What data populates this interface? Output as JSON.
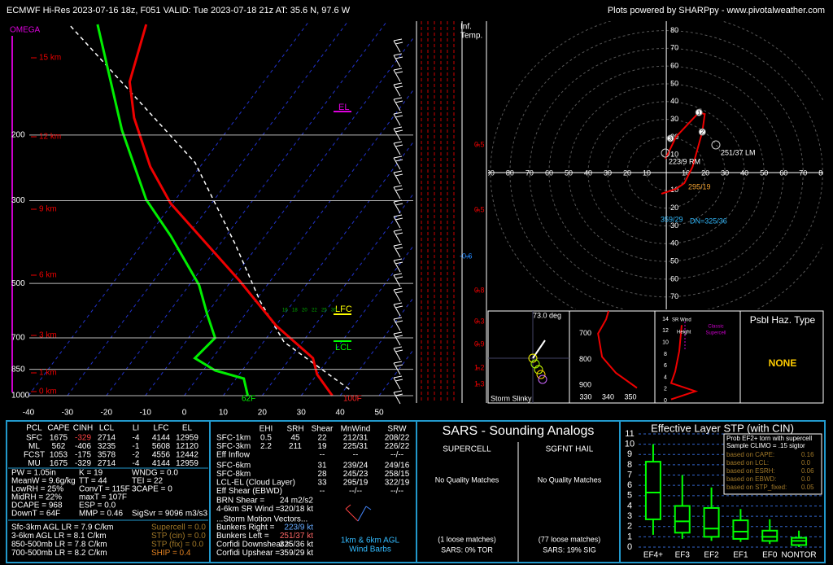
{
  "header": {
    "title": "ECMWF Hi-Res 2023-07-16 18z, F051  VALID: Tue 2023-07-18 21z  AT: 35.6 N, 97.6 W",
    "credit": "Plots powered by SHARPpy - www.pivotalweather.com"
  },
  "skewt": {
    "omega_label": "OMEGA",
    "height_labels": [
      "15 km",
      "12 km",
      "9 km",
      "6 km",
      "3 km",
      "1 km",
      "0 km"
    ],
    "plim": [
      1000,
      100
    ],
    "tlim": [
      -40,
      50
    ],
    "pressure_ticks": [
      200,
      300,
      500,
      700,
      850,
      1000
    ],
    "temp_ticks": [
      -40,
      -30,
      -20,
      -10,
      0,
      10,
      20,
      30,
      40,
      50
    ],
    "temperature": {
      "pressure": [
        1000,
        877,
        793,
        649,
        492,
        305,
        243,
        180,
        144,
        101
      ],
      "values": [
        38,
        30,
        25.8,
        10.1,
        -7.9,
        -40.5,
        -52.8,
        -66.3,
        -74.4,
        -81.2
      ]
    },
    "dewpoint": {
      "pressure": [
        1000,
        900,
        856,
        793,
        700,
        602,
        505,
        373,
        298,
        194,
        101
      ],
      "values": [
        16.3,
        12,
        3.1,
        -4.5,
        -3.2,
        -10,
        -17.5,
        -34.2,
        -47.5,
        -67.1,
        -93.7
      ]
    },
    "parcel": {
      "pressure": [
        961,
        718,
        558,
        393,
        237,
        101
      ],
      "values": [
        41.1,
        15.3,
        1.3,
        -16,
        -42.1,
        -101
      ]
    },
    "levels": {
      "el": "EL",
      "lfc": "LFC",
      "lcl": "LCL"
    },
    "surface": {
      "dewpoint": "62F",
      "temperature": "100F"
    },
    "mixing_ratio_labels": [
      "16",
      "18",
      "20",
      "22",
      "25",
      "30"
    ]
  },
  "inferred_temp": {
    "title": [
      "Inf.",
      "Temp."
    ],
    "values": [
      0.5,
      0.5,
      -0.6,
      0.8,
      0.3,
      0.9,
      1.2,
      1.3
    ]
  },
  "hodograph": {
    "xlim": [
      -91.2,
      80.3
    ],
    "ylim": [
      -77,
      85.3
    ],
    "ring_ticks": [
      10,
      20,
      30,
      40,
      50,
      60,
      70,
      80,
      90
    ],
    "trace": {
      "u": [
        -2.5,
        5.0,
        9.2,
        13.4,
        18.4,
        19.7,
        16.7,
        5.0,
        -0.4
      ],
      "v": [
        -11.9,
        -9.2,
        -6.0,
        3.2,
        22.9,
        33.0,
        33.9,
        20.2,
        7.8
      ]
    },
    "markers": {
      "labels": [
        "1",
        "2",
        "3"
      ],
      "u": [
        16.7,
        18.4,
        2.1
      ],
      "v": [
        33.9,
        22.9,
        19.3
      ]
    },
    "labels": {
      "lm": "251/37 LM",
      "rm": "223/9 RM",
      "cloud_layer": "295/19",
      "upshear": "359/29",
      "downshear": "DN=325/36"
    }
  },
  "slinky": {
    "angle": "73.0 deg",
    "title": "Storm Slinky"
  },
  "theta_e": {
    "xlim": [
      322.7,
      360.9
    ],
    "ylim": [
      968,
      613
    ],
    "pressure_ticks": [
      700,
      800,
      900
    ],
    "theta_ticks": [
      330,
      340,
      350
    ],
    "profile": {
      "pressure": [
        910,
        852,
        790,
        700,
        645,
        613
      ],
      "values": [
        352.9,
        343.5,
        337.3,
        335.5,
        339.1,
        340.2
      ]
    }
  },
  "sr_wind": {
    "xlim": [
      0,
      80
    ],
    "ylim": [
      0,
      15
    ],
    "height_ticks": [
      0,
      2,
      4,
      6,
      8,
      10,
      12,
      14
    ],
    "profile": {
      "height": [
        0.2,
        1.6,
        3,
        5,
        8.5,
        13
      ],
      "values": [
        14.6,
        37.7,
        14.6,
        18.5,
        22.3,
        24.6
      ]
    },
    "labels": [
      "SR Wind",
      "Height",
      "Classic",
      "Supercell"
    ]
  },
  "hazard": {
    "title": "Psbl Haz. Type",
    "value": "NONE"
  },
  "thermo": {
    "headers": [
      "PCL",
      "CAPE",
      "CINH",
      "LCL",
      "LI",
      "LFC",
      "EL"
    ],
    "rows": [
      [
        "SFC",
        1675,
        -329,
        2714,
        -4,
        4144,
        12959
      ],
      [
        "ML",
        562,
        -406,
        3235,
        -1,
        5608,
        12120
      ],
      [
        "FCST",
        1053,
        -175,
        3578,
        -2,
        4556,
        12442
      ],
      [
        "MU",
        1675,
        -329,
        2714,
        -4,
        4144,
        12959
      ]
    ],
    "indices": [
      [
        "PW = 1.05in",
        "K = 19",
        "WNDG = 0.0"
      ],
      [
        "MeanW = 9.6g/kg",
        "TT = 44",
        "TEI = 22"
      ],
      [
        "LowRH = 25%",
        "ConvT = 115F",
        "3CAPE = 0"
      ],
      [
        "MidRH = 22%",
        "maxT = 107F"
      ],
      [
        "DCAPE = 968",
        "ESP = 0.0"
      ],
      [
        "DownT = 64F",
        "MMP = 0.46",
        "SigSvr = 9096 m3/s3"
      ]
    ],
    "lapse_rates": [
      "Sfc-3km AGL LR = 7.9 C/km",
      "3-6km AGL LR = 8.1 C/km",
      "850-500mb LR = 7.8 C/km",
      "700-500mb LR = 8.2 C/km"
    ],
    "composites": [
      "Supercell = 0.0",
      "STP (cin) = 0.0",
      "STP (fix) = 0.0",
      "SHIP = 0.4"
    ]
  },
  "kinematic": {
    "headers": [
      "EHI",
      "SRH",
      "Shear",
      "MnWind",
      "SRW"
    ],
    "rows": [
      [
        "SFC-1km",
        "0.5",
        "45",
        "22",
        "212/31",
        "208/22"
      ],
      [
        "SFC-3km",
        "2.2",
        "211",
        "19",
        "225/31",
        "226/22"
      ],
      [
        "Eff Inflow",
        "--",
        "--",
        "--/--"
      ],
      [
        "SFC-6km",
        "31",
        "239/24",
        "249/16"
      ],
      [
        "SFC-8km",
        "28",
        "245/23",
        "258/15"
      ],
      [
        "LCL-EL (Cloud Layer)",
        "33",
        "295/19",
        "322/19"
      ],
      [
        "Eff Shear (EBWD)",
        "--",
        "--/--",
        "--/--"
      ]
    ],
    "params": [
      [
        "BRN Shear =",
        "24 m2/s2"
      ],
      [
        "4-6km SR Wind =",
        "320/18 kt"
      ]
    ],
    "vectors_title": "...Storm Motion Vectors...",
    "vectors": [
      [
        "Bunkers Right =",
        "223/9 kt"
      ],
      [
        "Bunkers Left =",
        "251/37 kt"
      ],
      [
        "Corfidi Downshear =",
        "325/36 kt"
      ],
      [
        "Corfidi Upshear =",
        "359/29 kt"
      ]
    ],
    "barbs_caption": [
      "1km & 6km AGL",
      "Wind Barbs"
    ]
  },
  "sars": {
    "title": "SARS - Sounding Analogs",
    "supercell": {
      "heading": "SUPERCELL",
      "matches": "No Quality Matches",
      "loose": "(1 loose matches)",
      "summary": "SARS: 0% TOR"
    },
    "hail": {
      "heading": "SGFNT HAIL",
      "matches": "No Quality Matches",
      "loose": "(77 loose matches)",
      "summary": "SARS: 19% SIG"
    }
  },
  "stp": {
    "type": "box",
    "title": "Effective Layer STP (with CIN)",
    "categories": [
      "EF4+",
      "EF3",
      "EF2",
      "EF1",
      "EF0",
      "NONTOR"
    ],
    "ylim": [
      0,
      11
    ],
    "yticks": [
      0,
      1,
      2,
      3,
      4,
      5,
      6,
      7,
      8,
      9,
      10,
      11
    ],
    "whisker_low": [
      1.2,
      0.8,
      0.6,
      0.5,
      0.3,
      0
    ],
    "q1": [
      2.7,
      1.4,
      1.0,
      0.8,
      0.6,
      0.2
    ],
    "median": [
      5.3,
      2.5,
      1.8,
      1.5,
      1.0,
      0.6
    ],
    "q3": [
      8.3,
      4.0,
      3.8,
      2.6,
      1.6,
      0.9
    ],
    "whisker_high": [
      10,
      7,
      5.8,
      3.7,
      2.7,
      1.6
    ],
    "color": "#00ff00",
    "legend": {
      "title": "Prob EF2+ torn with supercell",
      "climo": "Sample CLIMO = .15 sigtor",
      "items": [
        [
          "based on CAPE:",
          "0.16"
        ],
        [
          "based on LCL:",
          "0.0"
        ],
        [
          "based on ESRH:",
          "0.06"
        ],
        [
          "based on EBWD:",
          "0.0"
        ],
        [
          "based on STP_fixed:",
          "0.05"
        ]
      ]
    }
  }
}
